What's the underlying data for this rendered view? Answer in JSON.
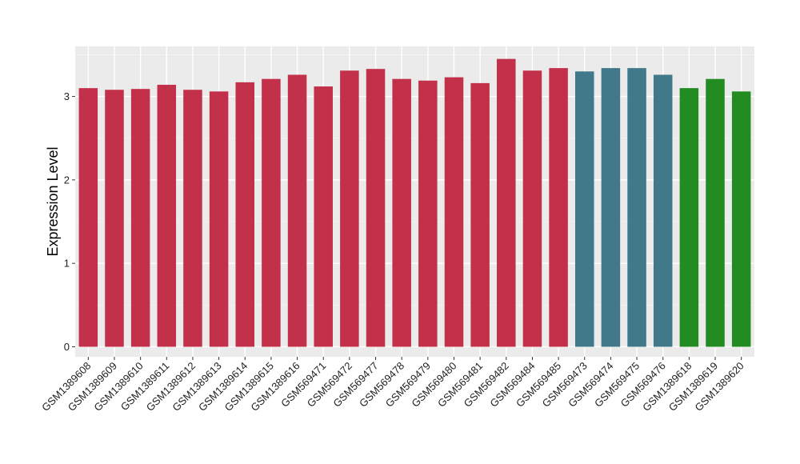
{
  "chart_data": {
    "type": "bar",
    "title": "",
    "xlabel": "",
    "ylabel": "Expression Level",
    "ylim": [
      -0.12,
      3.6
    ],
    "yticks": [
      0,
      1,
      2,
      3
    ],
    "grid": true,
    "panel_background": "#ebebeb",
    "categories": [
      "GSM1389608",
      "GSM1389609",
      "GSM1389610",
      "GSM1389611",
      "GSM1389612",
      "GSM1389613",
      "GSM1389614",
      "GSM1389615",
      "GSM1389616",
      "GSM569471",
      "GSM569472",
      "GSM569477",
      "GSM569478",
      "GSM569479",
      "GSM569480",
      "GSM569481",
      "GSM569482",
      "GSM569484",
      "GSM569485",
      "GSM569473",
      "GSM569474",
      "GSM569475",
      "GSM569476",
      "GSM1389618",
      "GSM1389619",
      "GSM1389620"
    ],
    "values": [
      3.1,
      3.08,
      3.09,
      3.14,
      3.08,
      3.06,
      3.17,
      3.21,
      3.26,
      3.12,
      3.31,
      3.33,
      3.21,
      3.19,
      3.23,
      3.16,
      3.45,
      3.31,
      3.34,
      3.3,
      3.34,
      3.34,
      3.26,
      3.1,
      3.21,
      3.06
    ],
    "colors": [
      "#c3304a",
      "#c3304a",
      "#c3304a",
      "#c3304a",
      "#c3304a",
      "#c3304a",
      "#c3304a",
      "#c3304a",
      "#c3304a",
      "#c3304a",
      "#c3304a",
      "#c3304a",
      "#c3304a",
      "#c3304a",
      "#c3304a",
      "#c3304a",
      "#c3304a",
      "#c3304a",
      "#c3304a",
      "#41788a",
      "#41788a",
      "#41788a",
      "#41788a",
      "#228b22",
      "#228b22",
      "#228b22"
    ]
  }
}
